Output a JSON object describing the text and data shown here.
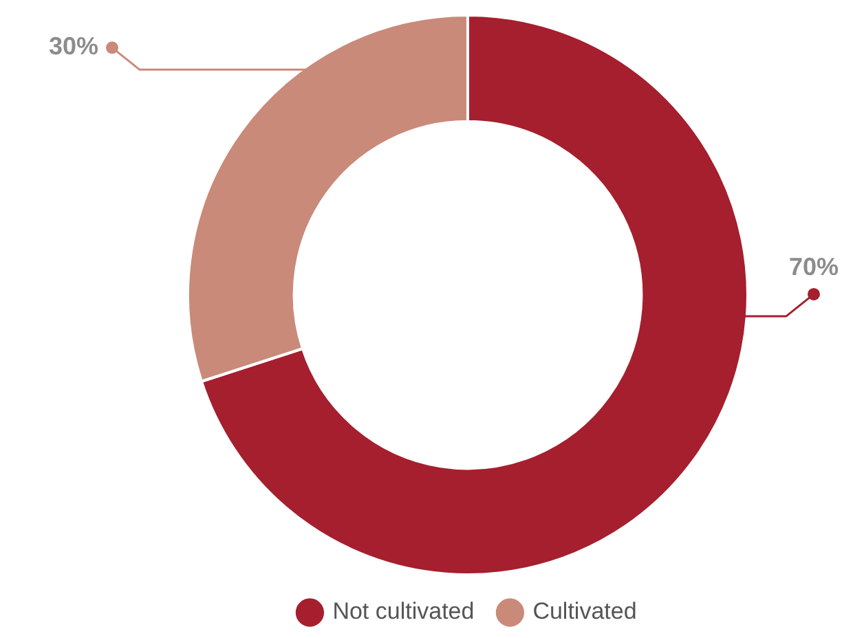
{
  "chart_data": {
    "type": "donut",
    "categories": [
      "Not cultivated",
      "Cultivated"
    ],
    "values": [
      70,
      30
    ],
    "colors": [
      "#a51f2e",
      "#c98a7a"
    ],
    "value_labels": [
      "70%",
      "30%"
    ],
    "legend": "bottom"
  }
}
